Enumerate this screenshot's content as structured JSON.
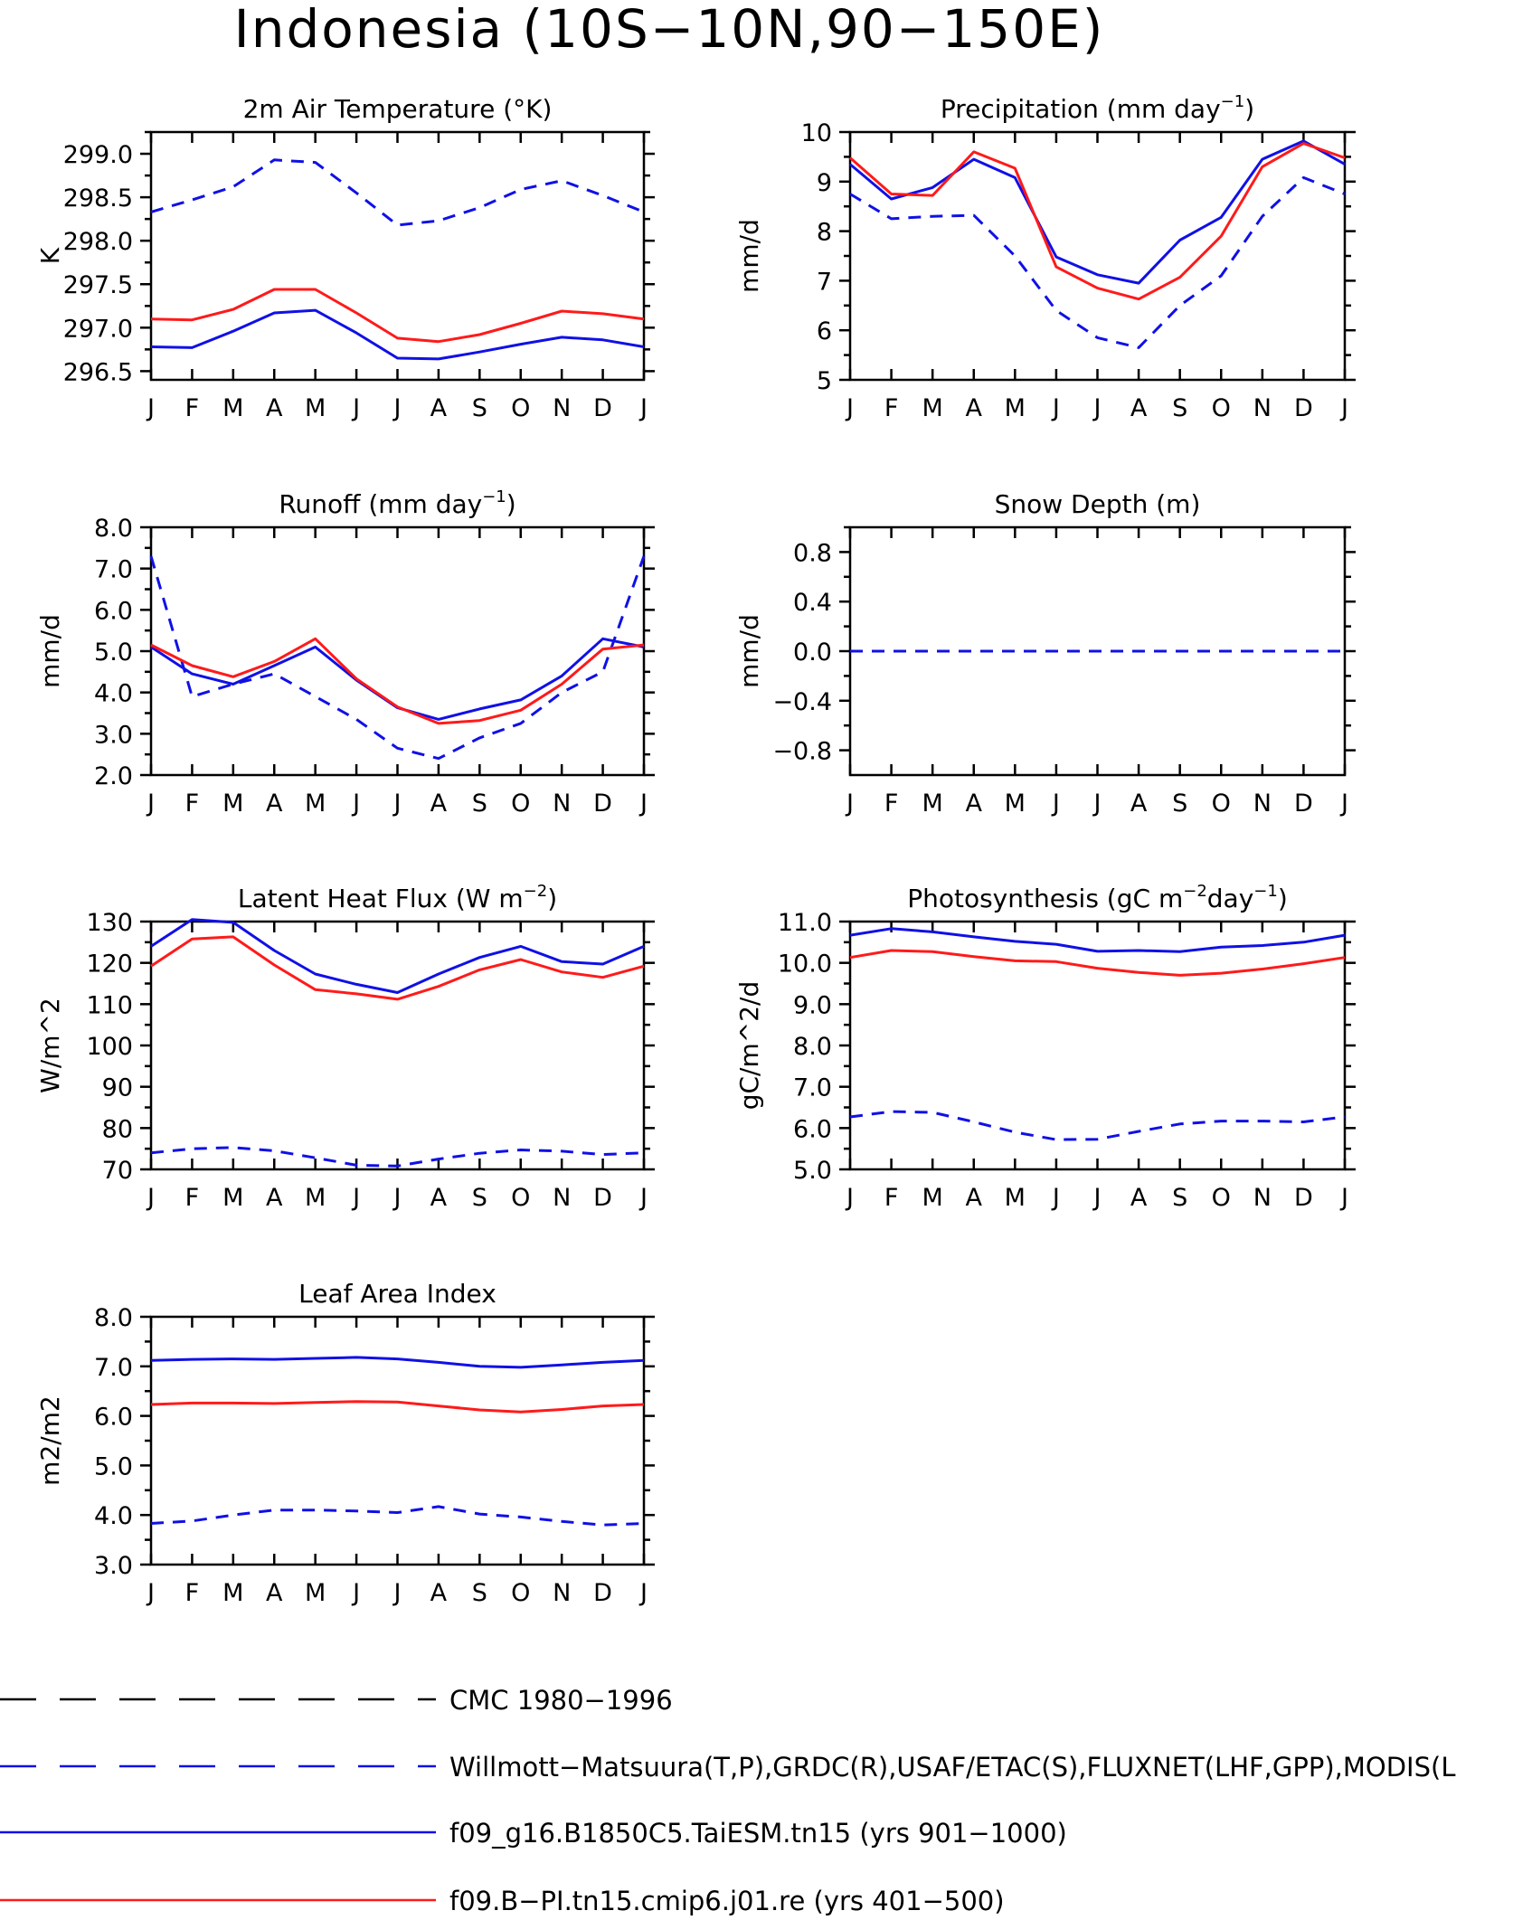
{
  "page": {
    "title": "Indonesia (10S−10N,90−150E)"
  },
  "colors": {
    "red": "#ff1a1a",
    "blue": "#1010e6",
    "black": "#000000"
  },
  "legend": [
    {
      "label": "CMC 1980−1996",
      "color": "#000000",
      "dash": "dashed"
    },
    {
      "label": "Willmott−Matsuura(T,P),GRDC(R),USAF/ETAC(S),FLUXNET(LHF,GPP),MODIS(L",
      "color": "#1010e6",
      "dash": "dashed"
    },
    {
      "label": "f09_g16.B1850C5.TaiESM.tn15 (yrs 901−1000)",
      "color": "#1010e6",
      "dash": "solid"
    },
    {
      "label": "f09.B−PI.tn15.cmip6.j01.re (yrs 401−500)",
      "color": "#ff1a1a",
      "dash": "solid"
    }
  ],
  "chart_data": [
    {
      "type": "line",
      "title": "2m Air Temperature (°K)",
      "ylabel": "K",
      "x": [
        "J",
        "F",
        "M",
        "A",
        "M",
        "J",
        "J",
        "A",
        "S",
        "O",
        "N",
        "D",
        "J"
      ],
      "ylim": [
        296.4,
        299.25
      ],
      "yticks": [
        296.5,
        297.0,
        297.5,
        298.0,
        298.5,
        299.0
      ],
      "ytick_labels": [
        "296.5",
        "297.0",
        "297.5",
        "298.0",
        "298.5",
        "299.0"
      ],
      "series": [
        {
          "color": "#1010e6",
          "dash": "dashed",
          "values": [
            298.33,
            298.47,
            298.62,
            298.93,
            298.9,
            298.55,
            298.18,
            298.23,
            298.38,
            298.59,
            298.69,
            298.52,
            298.33
          ]
        },
        {
          "color": "#1010e6",
          "dash": "solid",
          "values": [
            296.78,
            296.77,
            296.96,
            297.17,
            297.2,
            296.94,
            296.65,
            296.64,
            296.72,
            296.81,
            296.89,
            296.86,
            296.78
          ]
        },
        {
          "color": "#ff1a1a",
          "dash": "solid",
          "values": [
            297.1,
            297.09,
            297.21,
            297.44,
            297.44,
            297.17,
            296.88,
            296.84,
            296.92,
            297.05,
            297.19,
            297.16,
            297.1
          ]
        }
      ]
    },
    {
      "type": "line",
      "title": "Precipitation (mm day",
      "title_sup": "−1",
      "title_end": ")",
      "ylabel": "mm/d",
      "x": [
        "J",
        "F",
        "M",
        "A",
        "M",
        "J",
        "J",
        "A",
        "S",
        "O",
        "N",
        "D",
        "J"
      ],
      "ylim": [
        5,
        10
      ],
      "yticks": [
        5,
        6,
        7,
        8,
        9,
        10
      ],
      "ytick_labels": [
        "5",
        "6",
        "7",
        "8",
        "9",
        "10"
      ],
      "series": [
        {
          "color": "#1010e6",
          "dash": "dashed",
          "values": [
            8.75,
            8.25,
            8.3,
            8.32,
            7.5,
            6.4,
            5.85,
            5.65,
            6.5,
            7.1,
            8.3,
            9.08,
            8.75
          ]
        },
        {
          "color": "#1010e6",
          "dash": "solid",
          "values": [
            9.35,
            8.65,
            8.88,
            9.45,
            9.08,
            7.48,
            7.12,
            6.95,
            7.82,
            8.28,
            9.45,
            9.82,
            9.35
          ]
        },
        {
          "color": "#ff1a1a",
          "dash": "solid",
          "values": [
            9.48,
            8.75,
            8.72,
            9.6,
            9.27,
            7.28,
            6.85,
            6.63,
            7.07,
            7.9,
            9.3,
            9.77,
            9.48
          ]
        }
      ]
    },
    {
      "type": "line",
      "title": "Runoff (mm day",
      "title_sup": "−1",
      "title_end": ")",
      "ylabel": "mm/d",
      "x": [
        "J",
        "F",
        "M",
        "A",
        "M",
        "J",
        "J",
        "A",
        "S",
        "O",
        "N",
        "D",
        "J"
      ],
      "ylim": [
        2.0,
        8.0
      ],
      "yticks": [
        2.0,
        3.0,
        4.0,
        5.0,
        6.0,
        7.0,
        8.0
      ],
      "ytick_labels": [
        "2.0",
        "3.0",
        "4.0",
        "5.0",
        "6.0",
        "7.0",
        "8.0"
      ],
      "series": [
        {
          "color": "#1010e6",
          "dash": "dashed",
          "values": [
            7.3,
            3.9,
            4.2,
            4.45,
            3.9,
            3.35,
            2.65,
            2.4,
            2.9,
            3.25,
            4.0,
            4.5,
            7.3
          ]
        },
        {
          "color": "#1010e6",
          "dash": "solid",
          "values": [
            5.1,
            4.45,
            4.2,
            4.65,
            5.1,
            4.3,
            3.63,
            3.35,
            3.6,
            3.82,
            4.4,
            5.3,
            5.1
          ]
        },
        {
          "color": "#ff1a1a",
          "dash": "solid",
          "values": [
            5.15,
            4.65,
            4.38,
            4.75,
            5.3,
            4.33,
            3.65,
            3.25,
            3.32,
            3.57,
            4.2,
            5.05,
            5.15
          ]
        }
      ]
    },
    {
      "type": "line",
      "title": "Snow Depth (m)",
      "ylabel": "mm/d",
      "x": [
        "J",
        "F",
        "M",
        "A",
        "M",
        "J",
        "J",
        "A",
        "S",
        "O",
        "N",
        "D",
        "J"
      ],
      "ylim": [
        -1.0,
        1.0
      ],
      "yticks": [
        -0.8,
        -0.4,
        0.0,
        0.4,
        0.8
      ],
      "ytick_labels": [
        "−0.8",
        "−0.4",
        "0.0",
        "0.4",
        "0.8"
      ],
      "series": [
        {
          "color": "#000000",
          "dash": "dashed",
          "values": [
            0,
            0,
            0,
            0,
            0,
            0,
            0,
            0,
            0,
            0,
            0,
            0,
            0
          ]
        },
        {
          "color": "#1010e6",
          "dash": "dashed",
          "values": [
            0,
            0,
            0,
            0,
            0,
            0,
            0,
            0,
            0,
            0,
            0,
            0,
            0
          ]
        }
      ]
    },
    {
      "type": "line",
      "title": "Latent Heat Flux (W m",
      "title_sup": "−2",
      "title_end": ")",
      "ylabel": "W/m^2",
      "x": [
        "J",
        "F",
        "M",
        "A",
        "M",
        "J",
        "J",
        "A",
        "S",
        "O",
        "N",
        "D",
        "J"
      ],
      "ylim": [
        70,
        130
      ],
      "yticks": [
        70,
        80,
        90,
        100,
        110,
        120,
        130
      ],
      "ytick_labels": [
        "70",
        "80",
        "90",
        "100",
        "110",
        "120",
        "130"
      ],
      "series": [
        {
          "color": "#1010e6",
          "dash": "dashed",
          "values": [
            74,
            75,
            75.3,
            74.5,
            72.8,
            71,
            70.8,
            72.5,
            73.9,
            74.7,
            74.4,
            73.6,
            74
          ]
        },
        {
          "color": "#1010e6",
          "dash": "solid",
          "values": [
            124,
            130.5,
            129.8,
            123,
            117.3,
            114.8,
            112.8,
            117.3,
            121.3,
            124,
            120.3,
            119.7,
            124
          ]
        },
        {
          "color": "#ff1a1a",
          "dash": "solid",
          "values": [
            119.2,
            125.8,
            126.3,
            119.5,
            113.5,
            112.5,
            111.2,
            114.3,
            118.3,
            120.8,
            117.8,
            116.5,
            119.2
          ]
        }
      ]
    },
    {
      "type": "line",
      "title": "Photosynthesis (gC m",
      "title_sup": "−2",
      "title_mid": "day",
      "title_sup2": "−1",
      "title_end": ")",
      "ylabel": "gC/m^2/d",
      "x": [
        "J",
        "F",
        "M",
        "A",
        "M",
        "J",
        "J",
        "A",
        "S",
        "O",
        "N",
        "D",
        "J"
      ],
      "ylim": [
        5.0,
        11.0
      ],
      "yticks": [
        5.0,
        6.0,
        7.0,
        8.0,
        9.0,
        10.0,
        11.0
      ],
      "ytick_labels": [
        "5.0",
        "6.0",
        "7.0",
        "8.0",
        "9.0",
        "10.0",
        "11.0"
      ],
      "series": [
        {
          "color": "#1010e6",
          "dash": "dashed",
          "values": [
            6.27,
            6.4,
            6.38,
            6.15,
            5.9,
            5.72,
            5.73,
            5.92,
            6.1,
            6.17,
            6.17,
            6.15,
            6.27
          ]
        },
        {
          "color": "#1010e6",
          "dash": "solid",
          "values": [
            10.67,
            10.83,
            10.75,
            10.63,
            10.52,
            10.45,
            10.28,
            10.3,
            10.27,
            10.38,
            10.42,
            10.5,
            10.67
          ]
        },
        {
          "color": "#ff1a1a",
          "dash": "solid",
          "values": [
            10.13,
            10.3,
            10.27,
            10.15,
            10.05,
            10.03,
            9.87,
            9.77,
            9.7,
            9.75,
            9.85,
            9.98,
            10.13
          ]
        }
      ]
    },
    {
      "type": "line",
      "title": "Leaf Area Index",
      "ylabel": "m2/m2",
      "x": [
        "J",
        "F",
        "M",
        "A",
        "M",
        "J",
        "J",
        "A",
        "S",
        "O",
        "N",
        "D",
        "J"
      ],
      "ylim": [
        3.0,
        8.0
      ],
      "yticks": [
        3.0,
        4.0,
        5.0,
        6.0,
        7.0,
        8.0
      ],
      "ytick_labels": [
        "3.0",
        "4.0",
        "5.0",
        "6.0",
        "7.0",
        "8.0"
      ],
      "series": [
        {
          "color": "#1010e6",
          "dash": "dashed",
          "values": [
            3.83,
            3.88,
            4.0,
            4.1,
            4.1,
            4.08,
            4.05,
            4.17,
            4.02,
            3.96,
            3.87,
            3.8,
            3.83
          ]
        },
        {
          "color": "#1010e6",
          "dash": "solid",
          "values": [
            7.12,
            7.14,
            7.15,
            7.14,
            7.16,
            7.18,
            7.15,
            7.08,
            7.0,
            6.98,
            7.03,
            7.08,
            7.12
          ]
        },
        {
          "color": "#ff1a1a",
          "dash": "solid",
          "values": [
            6.23,
            6.26,
            6.26,
            6.25,
            6.27,
            6.29,
            6.28,
            6.2,
            6.12,
            6.08,
            6.13,
            6.2,
            6.23
          ]
        }
      ]
    }
  ]
}
